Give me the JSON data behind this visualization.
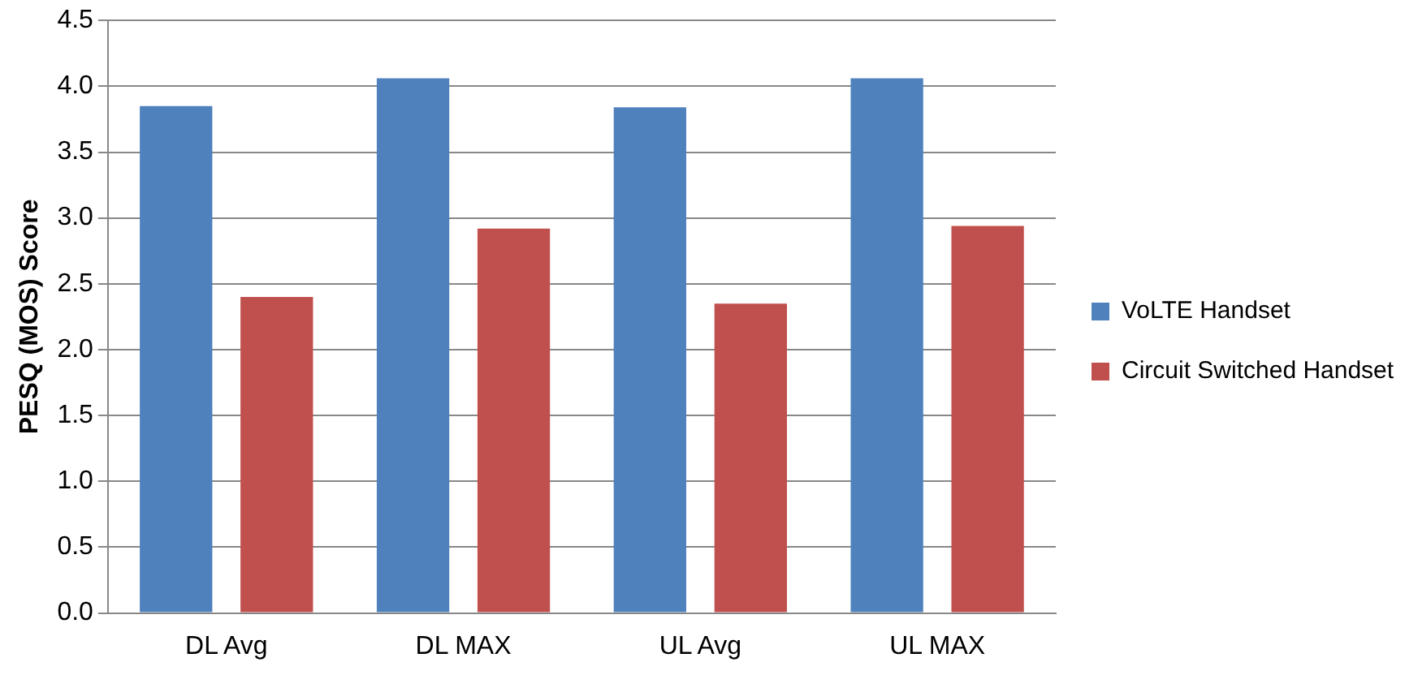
{
  "chart_data": {
    "type": "bar",
    "ylabel": "PESQ (MOS) Score",
    "categories": [
      "DL Avg",
      "DL MAX",
      "UL Avg",
      "UL MAX"
    ],
    "series": [
      {
        "name": "VoLTE Handset",
        "color": "#4f81bd",
        "values": [
          3.85,
          4.06,
          3.84,
          4.06
        ]
      },
      {
        "name": "Circuit Switched Handset",
        "color": "#c0504d",
        "values": [
          2.4,
          2.92,
          2.35,
          2.94
        ]
      }
    ],
    "ylim": [
      0,
      4.5
    ],
    "yticks": [
      {
        "value": 0,
        "label": "0.0"
      },
      {
        "value": 0.5,
        "label": "0.5"
      },
      {
        "value": 1,
        "label": "1.0"
      },
      {
        "value": 1.5,
        "label": "1.5"
      },
      {
        "value": 2,
        "label": "2.0"
      },
      {
        "value": 2.5,
        "label": "2.5"
      },
      {
        "value": 3,
        "label": "3.0"
      },
      {
        "value": 3.5,
        "label": "3.5"
      },
      {
        "value": 4,
        "label": "4.0"
      },
      {
        "value": 4.5,
        "label": "4.5"
      }
    ],
    "grid": "y",
    "legend": "right"
  }
}
